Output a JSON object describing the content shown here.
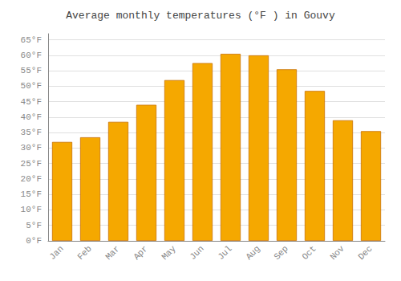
{
  "chart_data": {
    "type": "bar",
    "title": "Average monthly temperatures (°F ) in Gouvy",
    "categories": [
      "Jan",
      "Feb",
      "Mar",
      "Apr",
      "May",
      "Jun",
      "Jul",
      "Aug",
      "Sep",
      "Oct",
      "Nov",
      "Dec"
    ],
    "values": [
      32,
      33.5,
      38.5,
      44,
      52,
      57.5,
      60.5,
      60,
      55.5,
      48.5,
      39,
      35.5
    ],
    "color": "#F5A800",
    "ylim": [
      0,
      67
    ],
    "yticks": [
      {
        "value": 0,
        "label": "0°F"
      },
      {
        "value": 5,
        "label": "5°F"
      },
      {
        "value": 10,
        "label": "10°F"
      },
      {
        "value": 15,
        "label": "15°F"
      },
      {
        "value": 20,
        "label": "20°F"
      },
      {
        "value": 25,
        "label": "25°F"
      },
      {
        "value": 30,
        "label": "30°F"
      },
      {
        "value": 35,
        "label": "35°F"
      },
      {
        "value": 40,
        "label": "40°F"
      },
      {
        "value": 45,
        "label": "45°F"
      },
      {
        "value": 50,
        "label": "50°F"
      },
      {
        "value": 55,
        "label": "55°F"
      },
      {
        "value": 60,
        "label": "60°F"
      },
      {
        "value": 65,
        "label": "65°F"
      }
    ],
    "grid": true
  }
}
